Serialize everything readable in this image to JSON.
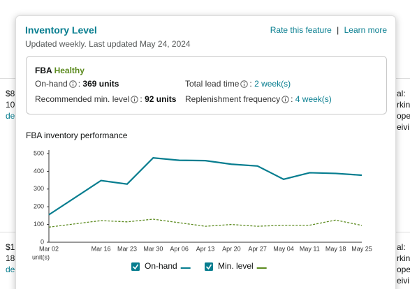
{
  "background": {
    "left_top": [
      "$8",
      "10",
      "de"
    ],
    "left_bottom": [
      "$1",
      "18",
      "de"
    ],
    "right_top": [
      "al:",
      "rkin",
      "ope",
      "eivi"
    ],
    "right_bottom": [
      "al:",
      "rkin",
      "ope",
      "eivi"
    ]
  },
  "header": {
    "title": "Inventory Level",
    "subtitle": "Updated weekly. Last updated May 24, 2024",
    "links": [
      "Rate this feature",
      "Learn more"
    ],
    "separator": "|"
  },
  "summary": {
    "program": "FBA",
    "status": "Healthy",
    "delimiter": ":",
    "fields": [
      {
        "label": "On-hand",
        "value": "369 units"
      },
      {
        "label": "Recommended min. level",
        "value": "92 units"
      },
      {
        "label": "Total lead time",
        "value": "2 week(s)"
      },
      {
        "label": "Replenishment frequency",
        "value": "4 week(s)"
      }
    ]
  },
  "chart_data": {
    "type": "line",
    "title": "FBA inventory performance",
    "y_unit": "unit(s)",
    "x": [
      "Mar 02",
      "Mar 16",
      "Mar 23",
      "Mar 30",
      "Apr 06",
      "Apr 13",
      "Apr 20",
      "Apr 27",
      "May 04",
      "May 11",
      "May 18",
      "May 25"
    ],
    "series": [
      {
        "name": "On-hand",
        "color": "#067d8f",
        "dashed": false,
        "values": [
          155,
          348,
          328,
          476,
          462,
          460,
          440,
          430,
          355,
          392,
          388,
          378
        ]
      },
      {
        "name": "Min. level",
        "color": "#5b8a1e",
        "dashed": true,
        "values": [
          85,
          122,
          115,
          130,
          110,
          90,
          100,
          90,
          96,
          96,
          125,
          95
        ]
      }
    ],
    "ylim": [
      0,
      500
    ],
    "yticks": [
      0,
      100,
      200,
      300,
      400,
      500
    ],
    "grid": false
  }
}
